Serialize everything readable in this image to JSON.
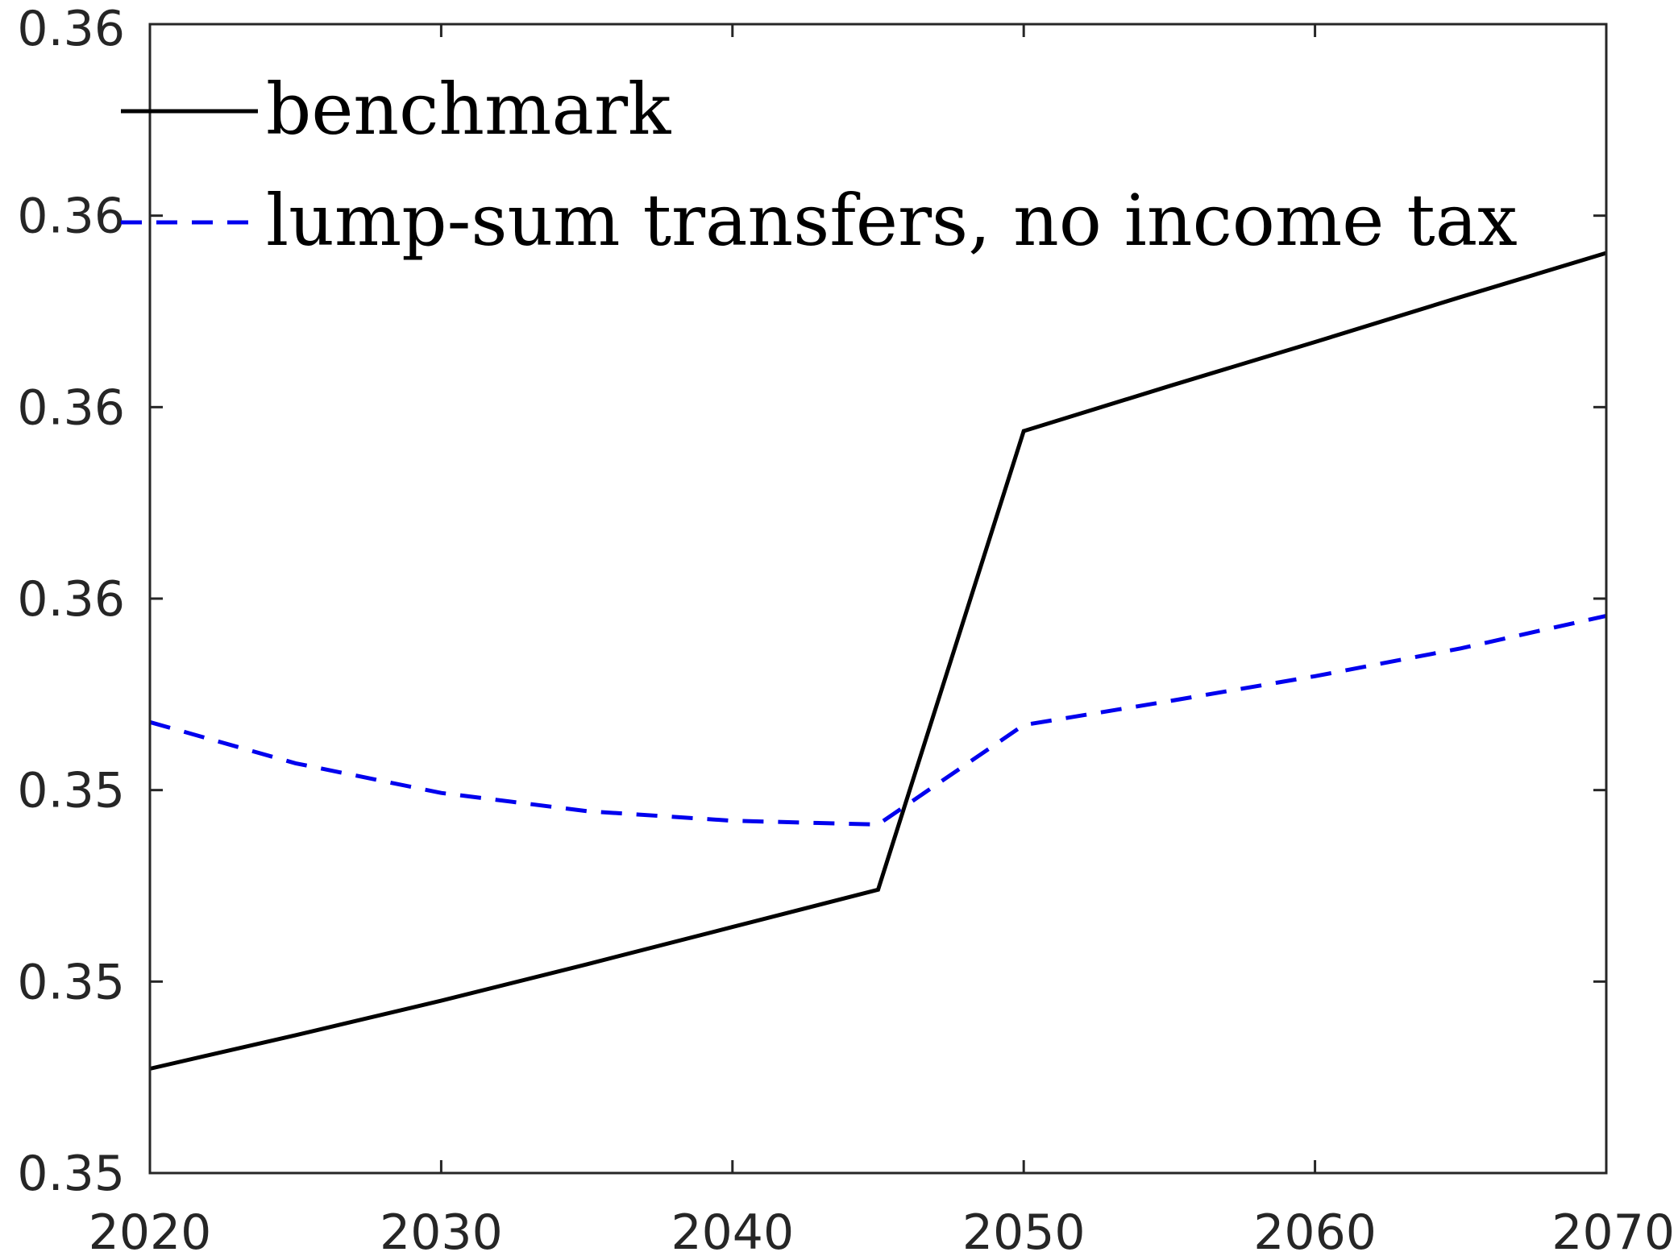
{
  "chart_data": {
    "type": "line",
    "title": "",
    "xlabel": "",
    "ylabel": "",
    "xlim": [
      2020,
      2070
    ],
    "ylim": [
      0.3485,
      0.3605
    ],
    "x_ticks": [
      2020,
      2030,
      2040,
      2050,
      2060,
      2070
    ],
    "x_tick_labels": [
      "2020",
      "2030",
      "2040",
      "2050",
      "2060",
      "2070"
    ],
    "y_ticks": [
      0.3485,
      0.3505,
      0.3525,
      0.3545,
      0.3565,
      0.3585,
      0.3605
    ],
    "y_tick_labels": [
      "0.35",
      "0.35",
      "0.35",
      "0.36",
      "0.36",
      "0.36",
      "0.36"
    ],
    "grid": false,
    "legend_position": "top-left",
    "series": [
      {
        "name": "benchmark",
        "color": "#000000",
        "style": "solid",
        "x": [
          2020,
          2025,
          2030,
          2035,
          2040,
          2045,
          2050,
          2055,
          2060,
          2065,
          2070
        ],
        "y": [
          0.34959,
          0.34994,
          0.3503,
          0.35068,
          0.35107,
          0.35146,
          0.35625,
          0.35672,
          0.35718,
          0.35765,
          0.35811
        ]
      },
      {
        "name": "lump-sum transfers, no income tax",
        "color": "#0000ee",
        "style": "dashed",
        "x": [
          2020,
          2025,
          2030,
          2035,
          2040,
          2045,
          2050,
          2055,
          2060,
          2065,
          2070
        ],
        "y": [
          0.35321,
          0.35278,
          0.35247,
          0.35228,
          0.35218,
          0.35214,
          0.35318,
          0.35343,
          0.35369,
          0.35398,
          0.35432
        ]
      }
    ]
  }
}
